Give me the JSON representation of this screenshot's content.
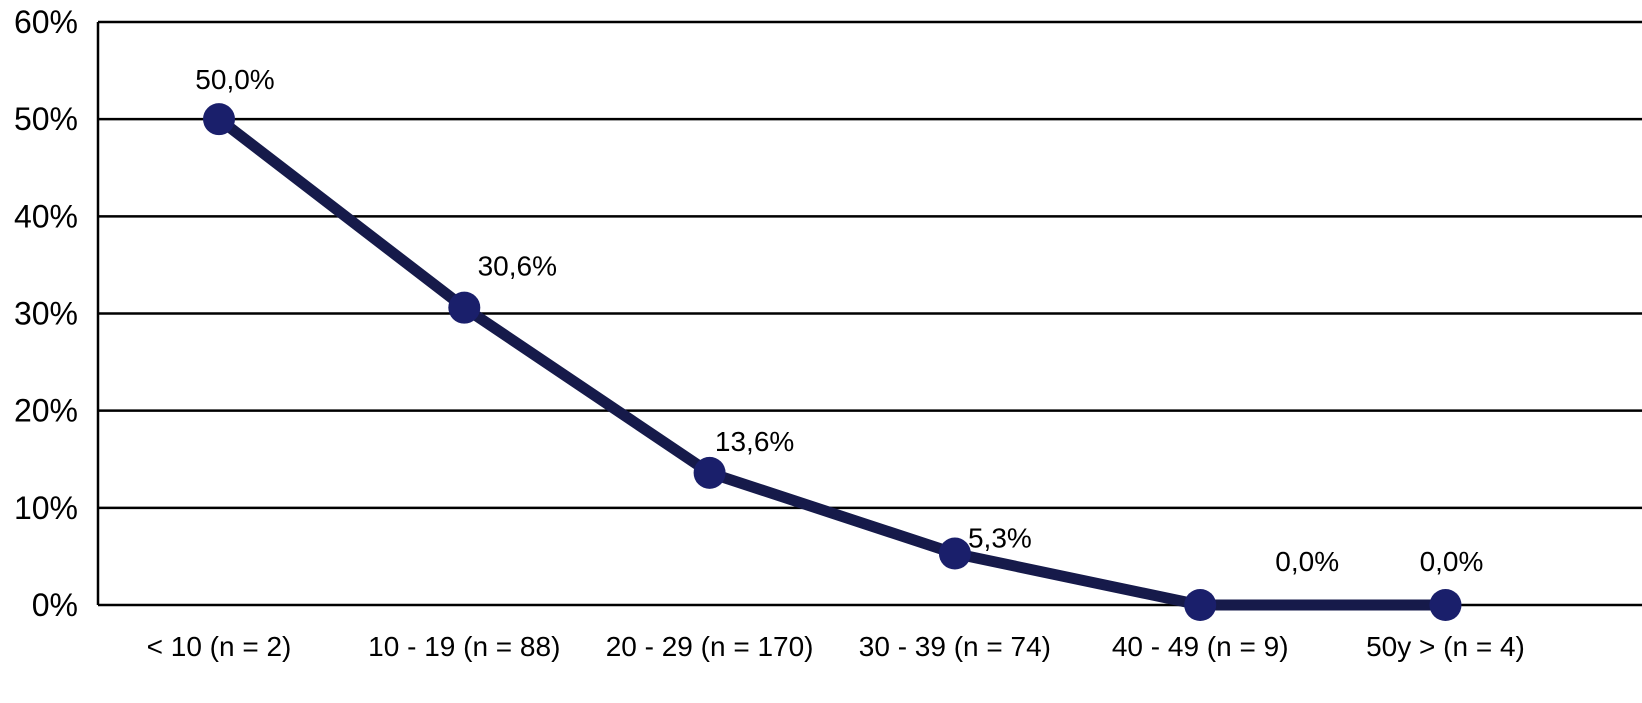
{
  "chart_data": {
    "type": "line",
    "categories": [
      "< 10 (n = 2)",
      "10 - 19 (n = 88)",
      "20 - 29 (n = 170)",
      "30 - 39 (n = 74)",
      "40 - 49 (n = 9)",
      "50y > (n = 4)"
    ],
    "values": [
      50.0,
      30.6,
      13.6,
      5.3,
      0.0,
      0.0
    ],
    "data_labels": [
      "50,0%",
      "30,6%",
      "13,6%",
      "5,3%",
      "0,0%",
      "0,0%"
    ],
    "yticks": [
      0,
      10,
      20,
      30,
      40,
      50,
      60
    ],
    "ytick_labels": [
      "0%",
      "10%",
      "20%",
      "30%",
      "40%",
      "50%",
      "60%"
    ],
    "ylim": [
      0,
      60
    ],
    "grid": true,
    "legend": "none",
    "colors": {
      "line": "#161a4a",
      "marker": "#1a1f6b",
      "grid": "#000000"
    }
  }
}
